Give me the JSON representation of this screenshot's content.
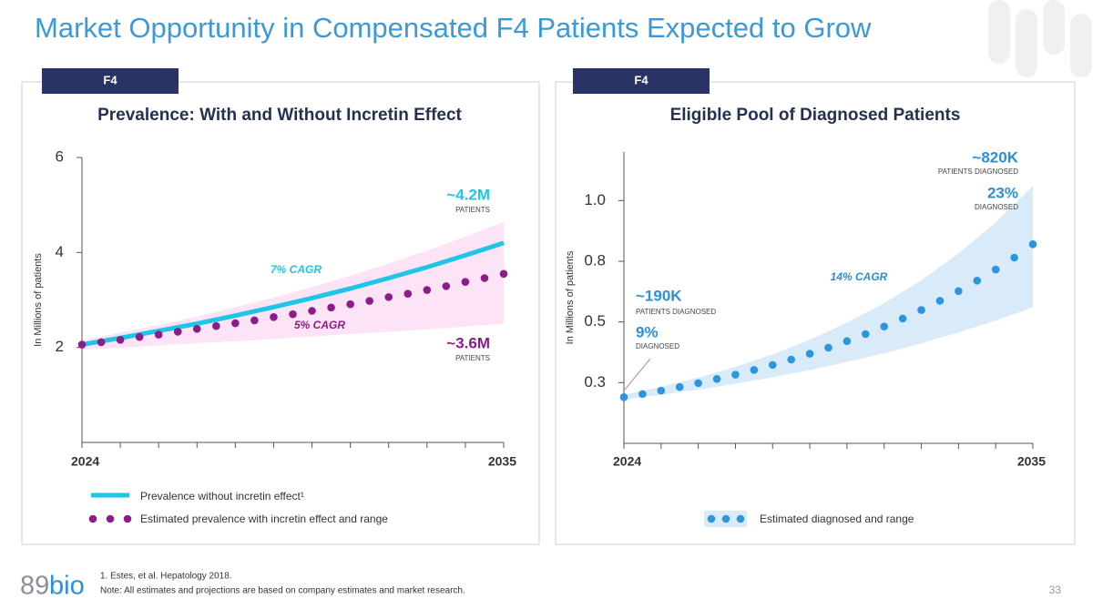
{
  "slide": {
    "title": "Market Opportunity in Compensated F4 Patients Expected to Grow",
    "logo": {
      "digits": "89",
      "word": "bio"
    },
    "footnotes": [
      "1. Estes, et al. Hepatology 2018.",
      "Note: All estimates and projections are based on company estimates and market research."
    ],
    "page_number": 33
  },
  "chart_data": [
    {
      "type": "line",
      "tag": "F4",
      "title": "Prevalence: With and Without Incretin Effect",
      "y_label": "In Millions of patients",
      "xlim": [
        2024,
        2035
      ],
      "xticks": [
        2024,
        2035
      ],
      "ylim": [
        0,
        6
      ],
      "yticks": [
        2,
        4,
        6
      ],
      "grid": false,
      "series": [
        {
          "name": "Prevalence without incretin effect¹",
          "color": "#1fc5e6",
          "style": "line",
          "x": [
            2024,
            2025,
            2026,
            2027,
            2028,
            2029,
            2030,
            2031,
            2032,
            2033,
            2034,
            2035
          ],
          "values": [
            2.06,
            2.2,
            2.35,
            2.5,
            2.67,
            2.85,
            3.04,
            3.24,
            3.46,
            3.69,
            3.94,
            4.2
          ]
        },
        {
          "name": "Estimated prevalence with incretin effect and range",
          "color": "#8b1c88",
          "style": "dots",
          "x": [
            2024,
            2024.5,
            2025,
            2025.5,
            2026,
            2026.5,
            2027,
            2027.5,
            2028,
            2028.5,
            2029,
            2029.5,
            2030,
            2030.5,
            2031,
            2031.5,
            2032,
            2032.5,
            2033,
            2033.5,
            2034,
            2034.5,
            2035
          ],
          "values": [
            2.06,
            2.11,
            2.16,
            2.22,
            2.27,
            2.33,
            2.39,
            2.45,
            2.51,
            2.57,
            2.64,
            2.7,
            2.77,
            2.84,
            2.91,
            2.98,
            3.06,
            3.13,
            3.21,
            3.29,
            3.38,
            3.46,
            3.55
          ],
          "band": {
            "color": "#fce4f6",
            "x": [
              2024,
              2025,
              2026,
              2027,
              2028,
              2029,
              2030,
              2031,
              2032,
              2033,
              2034,
              2035
            ],
            "low": [
              1.95,
              1.99,
              2.04,
              2.09,
              2.13,
              2.18,
              2.23,
              2.28,
              2.33,
              2.38,
              2.44,
              2.5
            ],
            "high": [
              2.15,
              2.31,
              2.47,
              2.65,
              2.85,
              3.05,
              3.27,
              3.51,
              3.77,
              4.04,
              4.33,
              4.65
            ]
          }
        }
      ],
      "annotations": [
        {
          "text": "~4.2M",
          "color": "#1fc5e6"
        },
        {
          "text": "PATIENTS",
          "color": "#444444"
        },
        {
          "text": "7% CAGR",
          "color": "#1fc5e6"
        },
        {
          "text": "5% CAGR",
          "color": "#8b1c88"
        },
        {
          "text": "~3.6M",
          "color": "#8b1c88"
        },
        {
          "text": "PATIENTS",
          "color": "#444444"
        }
      ]
    },
    {
      "type": "scatter",
      "tag": "F4",
      "title": "Eligible Pool of Diagnosed Patients",
      "y_label": "In Millions of patients",
      "xlim": [
        2024,
        2035
      ],
      "xticks": [
        2024,
        2035
      ],
      "ylim": [
        0,
        1.2
      ],
      "yticks": [
        {
          "value": 0.25,
          "label": "0.3"
        },
        0.5,
        {
          "value": 0.75,
          "label": "0.8"
        },
        {
          "value": 1,
          "label": "1.0"
        }
      ],
      "grid": false,
      "series": [
        {
          "name": "Estimated diagnosed and range",
          "color": "#2b95dd",
          "style": "dots",
          "x": [
            2024,
            2024.5,
            2025,
            2025.5,
            2026,
            2026.5,
            2027,
            2027.5,
            2028,
            2028.5,
            2029,
            2029.5,
            2030,
            2030.5,
            2031,
            2031.5,
            2032,
            2032.5,
            2033,
            2033.5,
            2034,
            2034.5,
            2035
          ],
          "values": [
            0.19,
            0.203,
            0.217,
            0.232,
            0.248,
            0.265,
            0.283,
            0.302,
            0.323,
            0.345,
            0.369,
            0.394,
            0.421,
            0.45,
            0.481,
            0.514,
            0.549,
            0.587,
            0.627,
            0.67,
            0.716,
            0.765,
            0.82
          ],
          "band": {
            "color": "#d9ebf9",
            "x": [
              2024,
              2025,
              2026,
              2027,
              2028,
              2029,
              2030,
              2031,
              2032,
              2033,
              2034,
              2035
            ],
            "low": [
              0.18,
              0.2,
              0.221,
              0.245,
              0.272,
              0.302,
              0.335,
              0.371,
              0.412,
              0.457,
              0.506,
              0.56
            ],
            "high": [
              0.2,
              0.233,
              0.271,
              0.315,
              0.367,
              0.427,
              0.497,
              0.578,
              0.672,
              0.782,
              0.91,
              1.06
            ]
          }
        }
      ],
      "annotations": [
        {
          "text": "~820K",
          "color": "#2b8fd8"
        },
        {
          "text": "PATIENTS DIAGNOSED",
          "color": "#444444"
        },
        {
          "text": "23%",
          "color": "#2b8fd8"
        },
        {
          "text": "DIAGNOSED",
          "color": "#444444"
        },
        {
          "text": "14% CAGR",
          "color": "#2b8fd8"
        },
        {
          "text": "~190K",
          "color": "#2b8fd8"
        },
        {
          "text": "PATIENTS DIAGNOSED",
          "color": "#444444"
        },
        {
          "text": "9%",
          "color": "#2b8fd8"
        },
        {
          "text": "DIAGNOSED",
          "color": "#444444"
        }
      ]
    }
  ]
}
